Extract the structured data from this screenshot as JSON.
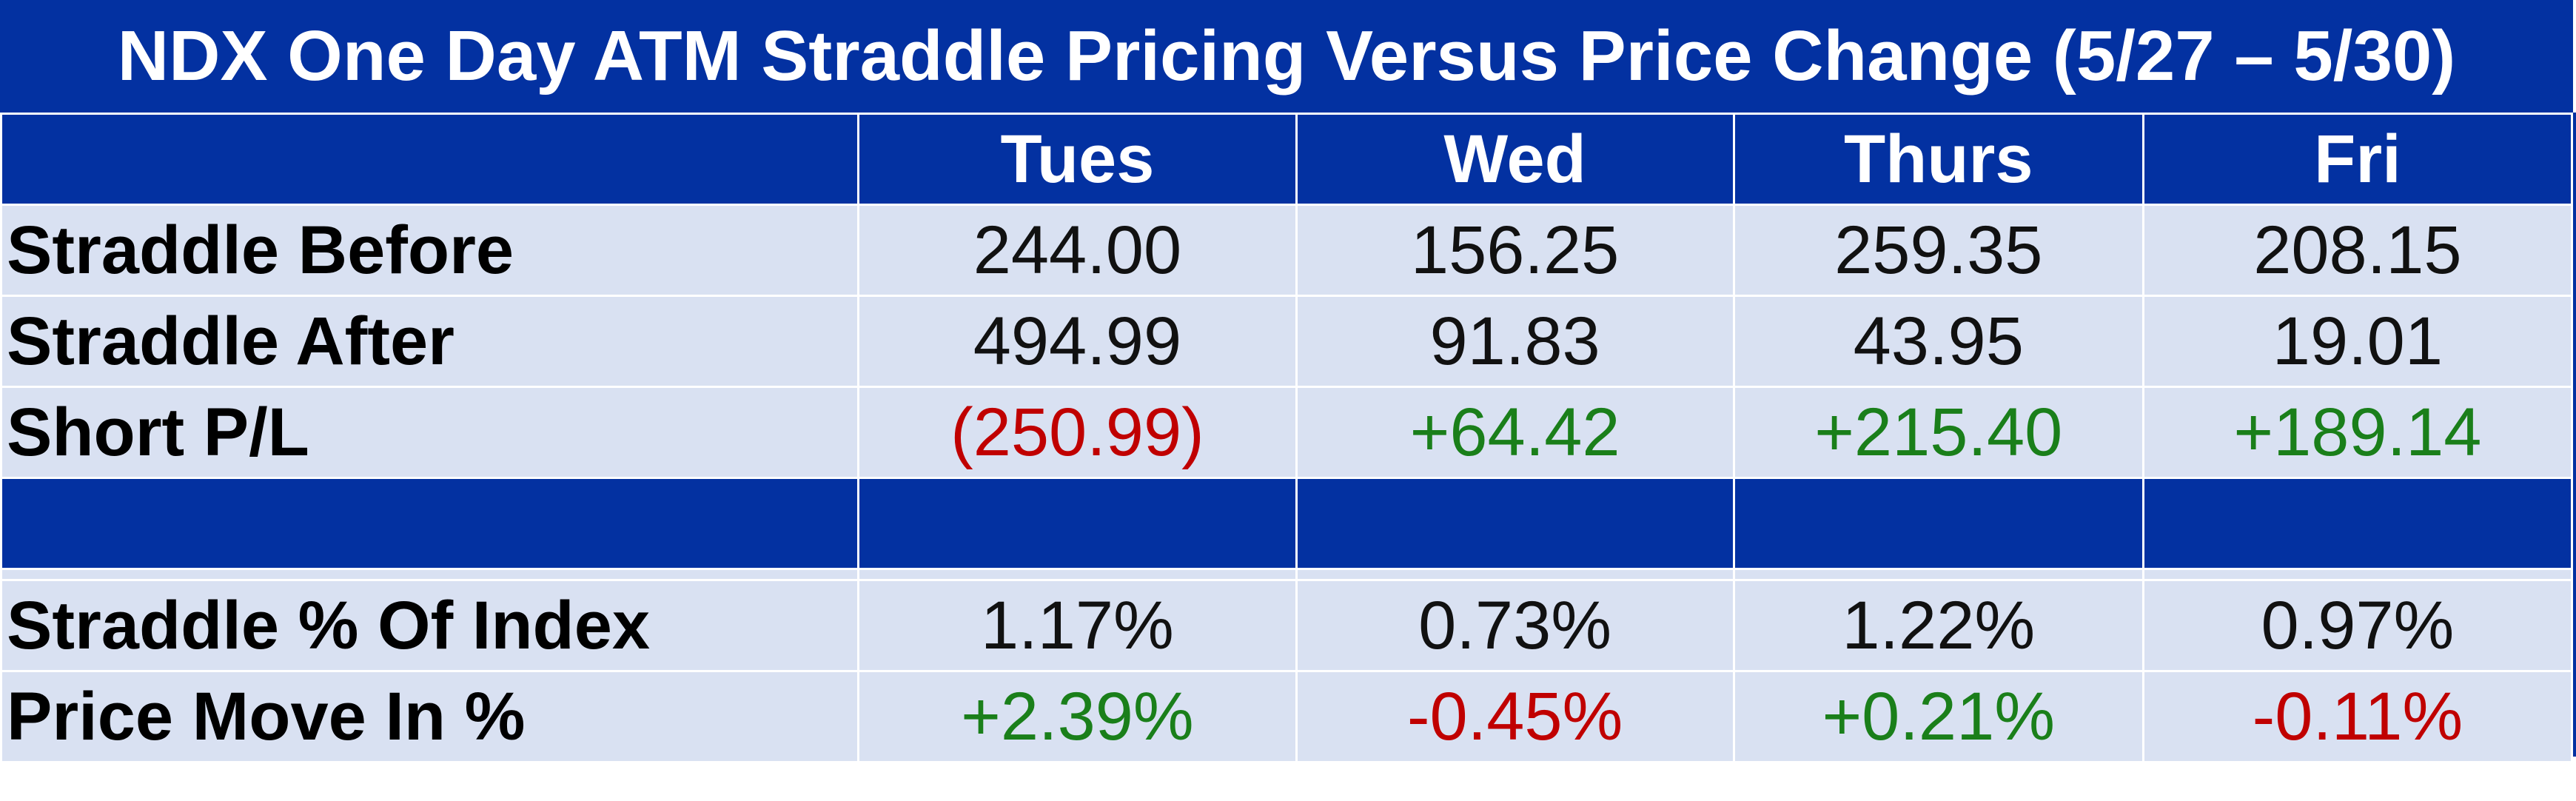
{
  "title": "NDX One Day ATM Straddle Pricing Versus Price Change (5/27 – 5/30)",
  "colors": {
    "header_bg": "#0331A1",
    "header_text": "#FFFFFF",
    "row_bg": "#D9E1F2",
    "negative": "#C00000",
    "positive": "#1A7F1A"
  },
  "columns": [
    "Tues",
    "Wed",
    "Thurs",
    "Fri"
  ],
  "rows_top": [
    {
      "label": "Straddle Before",
      "values": [
        "244.00",
        "156.25",
        "259.35",
        "208.15"
      ],
      "tones": [
        "plain",
        "plain",
        "plain",
        "plain"
      ]
    },
    {
      "label": "Straddle After",
      "values": [
        "494.99",
        "91.83",
        "43.95",
        "19.01"
      ],
      "tones": [
        "plain",
        "plain",
        "plain",
        "plain"
      ]
    },
    {
      "label": "Short P/L",
      "values": [
        "(250.99)",
        "+64.42",
        "+215.40",
        "+189.14"
      ],
      "tones": [
        "neg",
        "pos",
        "pos",
        "pos"
      ]
    }
  ],
  "rows_bottom": [
    {
      "label": "Straddle % Of Index",
      "values": [
        "1.17%",
        "0.73%",
        "1.22%",
        "0.97%"
      ],
      "tones": [
        "plain",
        "plain",
        "plain",
        "plain"
      ]
    },
    {
      "label": "Price Move In %",
      "values": [
        "+2.39%",
        "-0.45%",
        "+0.21%",
        "-0.11%"
      ],
      "tones": [
        "pos",
        "neg",
        "pos",
        "neg"
      ]
    }
  ]
}
